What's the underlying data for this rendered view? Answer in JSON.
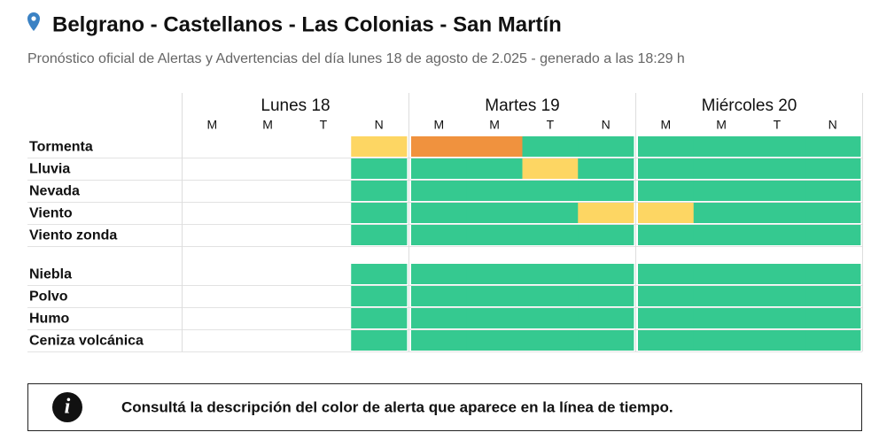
{
  "header": {
    "title": "Belgrano - Castellanos - Las Colonias - San Martín",
    "subtitle": "Pronóstico oficial de Alertas y Advertencias del día lunes 18 de agosto de 2.025 - generado a las 18:29 h"
  },
  "table": {
    "days": [
      {
        "label": "Lunes 18",
        "periods": [
          "M",
          "M",
          "T",
          "N"
        ]
      },
      {
        "label": "Martes 19",
        "periods": [
          "M",
          "M",
          "T",
          "N"
        ]
      },
      {
        "label": "Miércoles 20",
        "periods": [
          "M",
          "M",
          "T",
          "N"
        ]
      }
    ],
    "groups": [
      {
        "rows": [
          {
            "label": "Tormenta",
            "cells": [
              null,
              null,
              null,
              "#fdd663",
              "#f0923e",
              "#f0923e",
              "#35c990",
              "#35c990",
              "#35c990",
              "#35c990",
              "#35c990",
              "#35c990"
            ]
          },
          {
            "label": "Lluvia",
            "cells": [
              null,
              null,
              null,
              "#35c990",
              "#35c990",
              "#35c990",
              "#fdd663",
              "#35c990",
              "#35c990",
              "#35c990",
              "#35c990",
              "#35c990"
            ]
          },
          {
            "label": "Nevada",
            "cells": [
              null,
              null,
              null,
              "#35c990",
              "#35c990",
              "#35c990",
              "#35c990",
              "#35c990",
              "#35c990",
              "#35c990",
              "#35c990",
              "#35c990"
            ]
          },
          {
            "label": "Viento",
            "cells": [
              null,
              null,
              null,
              "#35c990",
              "#35c990",
              "#35c990",
              "#35c990",
              "#fdd663",
              "#fdd663",
              "#35c990",
              "#35c990",
              "#35c990"
            ]
          },
          {
            "label": "Viento zonda",
            "cells": [
              null,
              null,
              null,
              "#35c990",
              "#35c990",
              "#35c990",
              "#35c990",
              "#35c990",
              "#35c990",
              "#35c990",
              "#35c990",
              "#35c990"
            ]
          }
        ]
      },
      {
        "rows": [
          {
            "label": "Niebla",
            "cells": [
              null,
              null,
              null,
              "#35c990",
              "#35c990",
              "#35c990",
              "#35c990",
              "#35c990",
              "#35c990",
              "#35c990",
              "#35c990",
              "#35c990"
            ]
          },
          {
            "label": "Polvo",
            "cells": [
              null,
              null,
              null,
              "#35c990",
              "#35c990",
              "#35c990",
              "#35c990",
              "#35c990",
              "#35c990",
              "#35c990",
              "#35c990",
              "#35c990"
            ]
          },
          {
            "label": "Humo",
            "cells": [
              null,
              null,
              null,
              "#35c990",
              "#35c990",
              "#35c990",
              "#35c990",
              "#35c990",
              "#35c990",
              "#35c990",
              "#35c990",
              "#35c990"
            ]
          },
          {
            "label": "Ceniza volcánica",
            "cells": [
              null,
              null,
              null,
              "#35c990",
              "#35c990",
              "#35c990",
              "#35c990",
              "#35c990",
              "#35c990",
              "#35c990",
              "#35c990",
              "#35c990"
            ]
          }
        ]
      }
    ]
  },
  "notice": {
    "text": "Consultá la descripción del color de alerta que aparece en la línea de tiempo."
  }
}
